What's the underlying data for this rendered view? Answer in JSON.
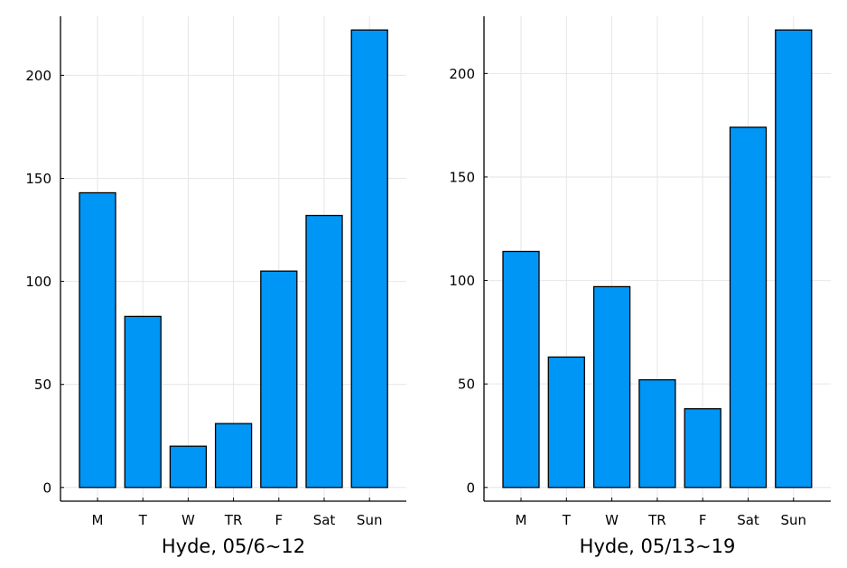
{
  "colors": {
    "bar_fill": "#0096f5",
    "bar_stroke": "#000000",
    "grid": "#e6e6e6",
    "axis": "#000000"
  },
  "chart_data": [
    {
      "type": "bar",
      "title": "",
      "xlabel": "Hyde, 05/6~12",
      "ylabel": "",
      "categories": [
        "M",
        "T",
        "W",
        "TR",
        "F",
        "Sat",
        "Sun"
      ],
      "values": [
        143,
        83,
        20,
        31,
        105,
        132,
        222
      ],
      "ylim": [
        -6.66,
        228.66
      ],
      "yticks": [
        0,
        50,
        100,
        150,
        200
      ],
      "ytick_labels": [
        "0",
        "50",
        "100",
        "150",
        "200"
      ],
      "grid": true,
      "legend": "none"
    },
    {
      "type": "bar",
      "title": "",
      "xlabel": "Hyde, 05/13~19",
      "ylabel": "",
      "categories": [
        "M",
        "T",
        "W",
        "TR",
        "F",
        "Sat",
        "Sun"
      ],
      "values": [
        114,
        63,
        97,
        52,
        38,
        174,
        221
      ],
      "ylim": [
        -6.63,
        227.63
      ],
      "yticks": [
        0,
        50,
        100,
        150,
        200
      ],
      "ytick_labels": [
        "0",
        "50",
        "100",
        "150",
        "200"
      ],
      "grid": true,
      "legend": "none"
    }
  ]
}
